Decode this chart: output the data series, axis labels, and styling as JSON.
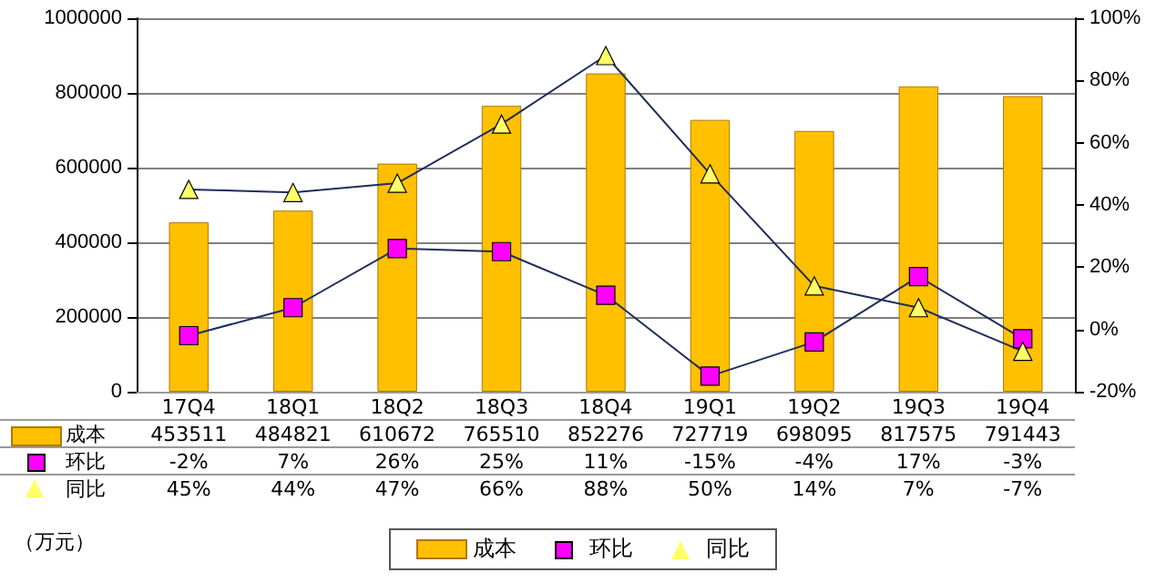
{
  "chart_data": {
    "type": "bar",
    "categories": [
      "17Q4",
      "18Q1",
      "18Q2",
      "18Q3",
      "18Q4",
      "19Q1",
      "19Q2",
      "19Q3",
      "19Q4"
    ],
    "series": [
      {
        "name": "成本",
        "color": "#ffc000",
        "values": [
          453511,
          484821,
          610672,
          765510,
          852276,
          727719,
          698095,
          817575,
          791443
        ],
        "value_labels": [
          "453511",
          "484821",
          "610672",
          "765510",
          "852276",
          "727719",
          "698095",
          "817575",
          "791443"
        ]
      },
      {
        "name": "环比",
        "type": "line",
        "axis": "y2",
        "marker": "square",
        "color": "#ff00ff",
        "values": [
          -2,
          7,
          26,
          25,
          11,
          -15,
          -4,
          17,
          -3
        ],
        "value_labels": [
          "-2%",
          "7%",
          "26%",
          "25%",
          "11%",
          "-15%",
          "-4%",
          "17%",
          "-3%"
        ]
      },
      {
        "name": "同比",
        "type": "line",
        "axis": "y2",
        "marker": "triangle",
        "color": "#ffff66",
        "values": [
          45,
          44,
          47,
          66,
          88,
          50,
          14,
          7,
          -7
        ],
        "value_labels": [
          "45%",
          "44%",
          "47%",
          "66%",
          "88%",
          "50%",
          "14%",
          "7%",
          "-7%"
        ]
      }
    ],
    "ylim": [
      0,
      1000000
    ],
    "yticks": [
      0,
      200000,
      400000,
      600000,
      800000,
      1000000
    ],
    "y2lim": [
      -20,
      100
    ],
    "y2ticks": [
      {
        "value": -20,
        "label": "-20%"
      },
      {
        "value": 0,
        "label": "0%"
      },
      {
        "value": 20,
        "label": "20%"
      },
      {
        "value": 40,
        "label": "40%"
      },
      {
        "value": 60,
        "label": "60%"
      },
      {
        "value": 80,
        "label": "80%"
      },
      {
        "value": 100,
        "label": "100%"
      }
    ],
    "grid": "y",
    "legend": "bottom",
    "line_style": "solid",
    "annotations": [
      "（万元）"
    ]
  }
}
